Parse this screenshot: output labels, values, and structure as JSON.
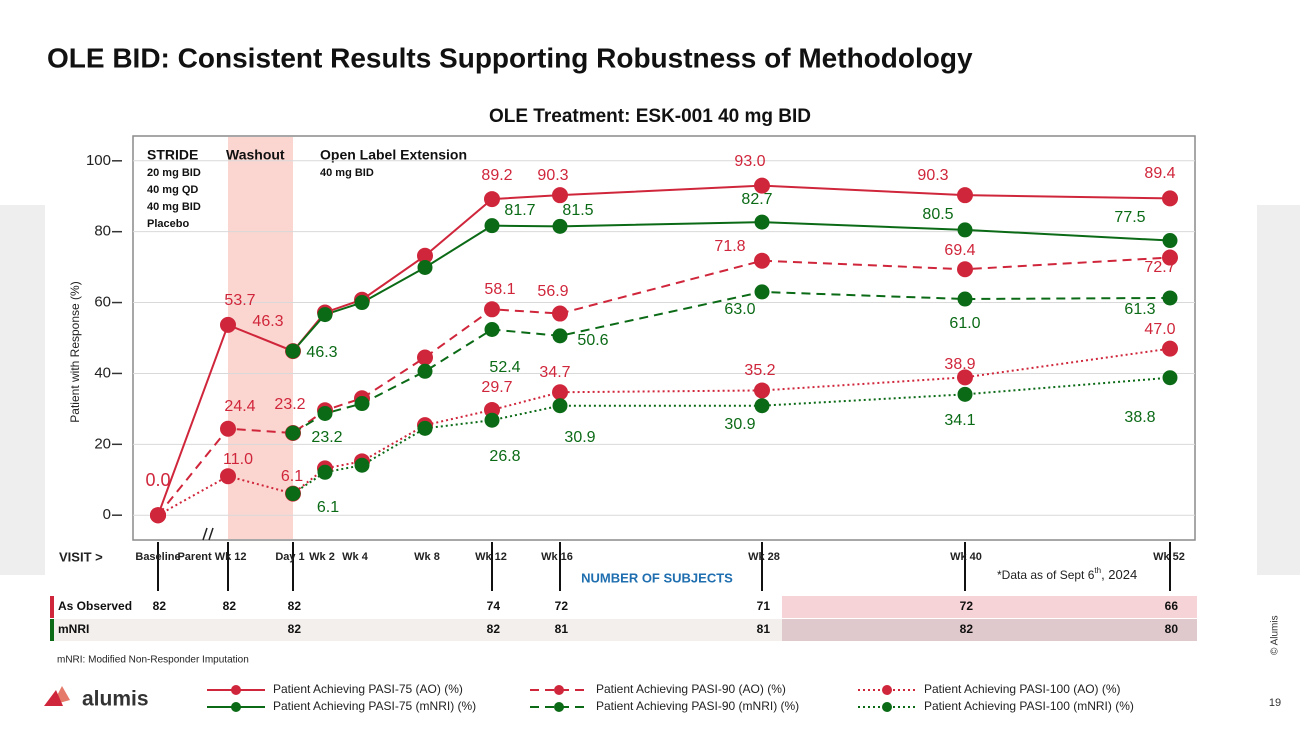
{
  "header": {
    "title": "OLE BID: Consistent Results Supporting Robustness of Methodology"
  },
  "chart_data": {
    "type": "line",
    "title": "OLE Treatment: ESK-001 40 mg BID",
    "y_label": "Patient with Response (%)",
    "x_label": "VISIT >",
    "categories": [
      "Baseline",
      "Parent Wk 12",
      "Day 1",
      "Wk 2",
      "Wk 4",
      "Wk 8",
      "Wk 12",
      "Wk 16",
      "Wk 28",
      "Wk 40",
      "Wk 52"
    ],
    "ylim": [
      -7,
      107
    ],
    "yticks": [
      0,
      20,
      40,
      60,
      80,
      100
    ],
    "grid": true,
    "periods": [
      {
        "label": "STRIDE",
        "doses": [
          "20 mg BID",
          "40 mg QD",
          "40 mg BID",
          "Placebo"
        ]
      },
      {
        "label": "Washout"
      },
      {
        "label": "Open Label Extension",
        "doses": [
          "40 mg BID"
        ]
      }
    ],
    "series": [
      {
        "name": "Patient Achieving PASI-75 (AO) (%)",
        "color": "#d0263b",
        "line_style": "solid",
        "values": [
          0,
          53.7,
          46.3,
          57.2,
          60.8,
          73.2,
          89.2,
          90.3,
          93.0,
          90.3,
          89.4
        ],
        "value_labels": [
          "0.0",
          "53.7",
          "46.3",
          null,
          null,
          null,
          "89.2",
          "90.3",
          "93.0",
          "90.3",
          "89.4"
        ]
      },
      {
        "name": "Patient Achieving PASI-75 (mNRI) (%)",
        "color": "#0b6a16",
        "line_style": "solid",
        "values": [
          null,
          null,
          46.3,
          56.6,
          60.0,
          69.9,
          81.7,
          81.5,
          82.7,
          80.5,
          77.5
        ],
        "value_labels": [
          null,
          null,
          "46.3",
          null,
          null,
          null,
          "81.7",
          "81.5",
          "82.7",
          "80.5",
          "77.5"
        ]
      },
      {
        "name": "Patient Achieving PASI-90 (AO) (%)",
        "color": "#d0263b",
        "line_style": "dashed",
        "values": [
          0,
          24.4,
          23.2,
          29.6,
          33.0,
          44.5,
          58.1,
          56.9,
          71.8,
          69.4,
          72.7
        ],
        "value_labels": [
          null,
          "24.4",
          "23.2",
          null,
          null,
          null,
          "58.1",
          "56.9",
          "71.8",
          "69.4",
          "72.7"
        ]
      },
      {
        "name": "Patient Achieving PASI-90 (mNRI) (%)",
        "color": "#0b6a16",
        "line_style": "dashed",
        "values": [
          null,
          null,
          23.2,
          28.7,
          31.5,
          40.6,
          52.4,
          50.6,
          63.0,
          61.0,
          61.3
        ],
        "value_labels": [
          null,
          null,
          "23.2",
          null,
          null,
          null,
          "52.4",
          "50.6",
          "63.0",
          "61.0",
          "61.3"
        ]
      },
      {
        "name": "Patient Achieving PASI-100 (AO) (%)",
        "color": "#d0263b",
        "line_style": "dotted",
        "values": [
          0,
          11.0,
          6.1,
          13.2,
          15.2,
          25.4,
          29.7,
          34.7,
          35.2,
          38.9,
          47.0
        ],
        "value_labels": [
          null,
          "11.0",
          "6.1",
          null,
          null,
          null,
          "29.7",
          "34.7",
          "35.2",
          "38.9",
          "47.0"
        ]
      },
      {
        "name": "Patient Achieving PASI-100 (mNRI) (%)",
        "color": "#0b6a16",
        "line_style": "dotted",
        "values": [
          null,
          null,
          6.1,
          12.1,
          14.1,
          24.5,
          26.8,
          30.9,
          30.9,
          34.1,
          38.8
        ],
        "value_labels": [
          null,
          null,
          "6.1",
          null,
          null,
          null,
          "26.8",
          "30.9",
          "30.9",
          "34.1",
          "38.8"
        ]
      }
    ]
  },
  "subjects": {
    "title": "NUMBER OF SUBJECTS",
    "rows": [
      {
        "label": "As Observed",
        "counts": [
          82,
          82,
          82,
          null,
          null,
          null,
          74,
          72,
          71,
          72,
          66
        ]
      },
      {
        "label": "mNRI",
        "counts": [
          null,
          null,
          82,
          null,
          null,
          null,
          82,
          81,
          81,
          82,
          80
        ]
      }
    ]
  },
  "footnotes": {
    "data_date": [
      "*Data as of Sept 6",
      "th",
      ", 2024"
    ],
    "abbreviation": "mNRI: Modified Non-Responder Imputation"
  },
  "footer": {
    "logo": "alumis",
    "copyright": "© Alumis",
    "page": "19"
  }
}
